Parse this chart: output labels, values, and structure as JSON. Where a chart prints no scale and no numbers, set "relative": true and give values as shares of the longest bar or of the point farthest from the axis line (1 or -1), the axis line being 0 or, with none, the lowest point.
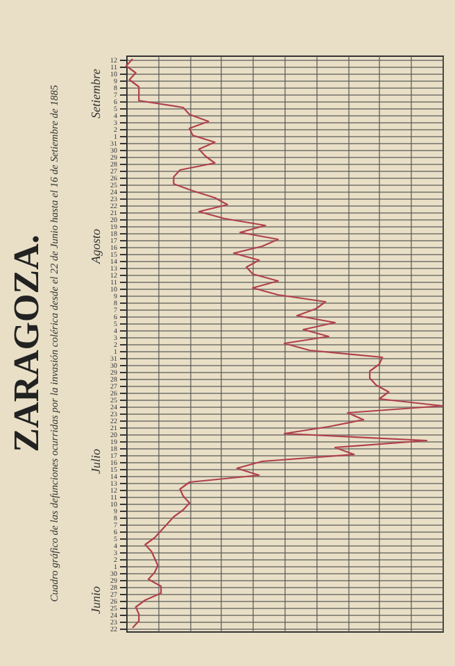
{
  "chart_data": {
    "type": "line",
    "orientation": "horizontal",
    "title": "ZARAGOZA.",
    "subtitle": "Cuadro gráfico de las defunciones ocurridas por la invasión colérica desde el 22 de Junio hasta el 16 de Setiembre de 1885",
    "categories": [
      "12",
      "11",
      "10",
      "9",
      "8",
      "7",
      "6",
      "5",
      "4",
      "3",
      "2",
      "1",
      "31",
      "30",
      "29",
      "28",
      "27",
      "26",
      "25",
      "24",
      "23",
      "22",
      "21",
      "20",
      "19",
      "18",
      "17",
      "16",
      "15",
      "14",
      "13",
      "12",
      "11",
      "10",
      "9",
      "8",
      "7",
      "6",
      "5",
      "4",
      "3",
      "2",
      "1",
      "31",
      "30",
      "29",
      "28",
      "27",
      "26",
      "25",
      "24",
      "23",
      "22",
      "21",
      "20",
      "19",
      "18",
      "17",
      "16",
      "15",
      "14",
      "13",
      "12",
      "11",
      "10",
      "9",
      "8",
      "7",
      "6",
      "5",
      "4",
      "3",
      "2",
      "1",
      "30",
      "29",
      "28",
      "27",
      "26",
      "25",
      "24",
      "23",
      "22"
    ],
    "annotations": [
      "Setiembre",
      "Agosto",
      "Julio",
      "Junio"
    ],
    "relative": true,
    "grid": true,
    "series": [
      {
        "color": "#b0404c",
        "values": [
          0.02,
          0,
          0.03,
          0.01,
          0.04,
          0.04,
          0.04,
          0.18,
          0.2,
          0.26,
          0.2,
          0.21,
          0.28,
          0.23,
          0.25,
          0.28,
          0.17,
          0.15,
          0.15,
          0.21,
          0.28,
          0.32,
          0.23,
          0.31,
          0.44,
          0.36,
          0.48,
          0.43,
          0.34,
          0.42,
          0.38,
          0.4,
          0.48,
          0.4,
          0.48,
          0.63,
          0.6,
          0.54,
          0.66,
          0.56,
          0.64,
          0.5,
          0.58,
          0.81,
          0.8,
          0.77,
          0.77,
          0.79,
          0.83,
          0.8,
          1,
          0.7,
          0.75,
          0.64,
          0.5,
          0.95,
          0.66,
          0.72,
          0.43,
          0.35,
          0.42,
          0.2,
          0.17,
          0.18,
          0.2,
          0.18,
          0.15,
          0.13,
          0.11,
          0.09,
          0.06,
          0.08,
          0.09,
          0.1,
          0.09,
          0.07,
          0.11,
          0.11,
          0.06,
          0.03,
          0.04,
          0.04,
          0.02
        ]
      }
    ]
  }
}
